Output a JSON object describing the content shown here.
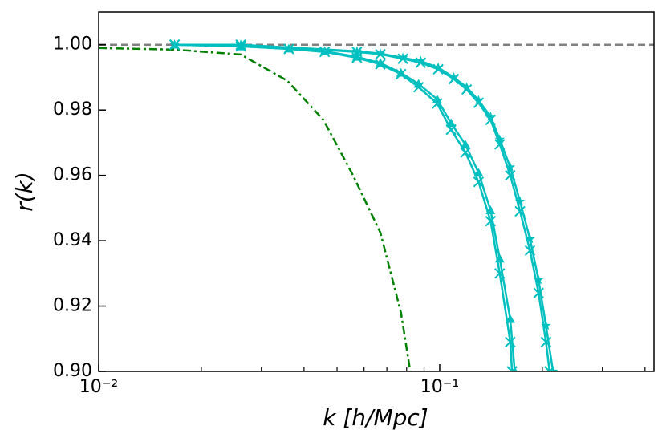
{
  "chart_data": {
    "type": "line",
    "xlabel": "k [h/Mpc]",
    "ylabel": "r(k)",
    "xscale": "log",
    "xlim": [
      0.01,
      0.425
    ],
    "ylim": [
      0.9,
      1.01
    ],
    "xticks": [
      {
        "value": 0.01,
        "label": "10⁻²"
      },
      {
        "value": 0.1,
        "label": "10⁻¹"
      }
    ],
    "xminor_ticks": [
      0.02,
      0.03,
      0.04,
      0.05,
      0.06,
      0.07,
      0.08,
      0.09,
      0.2,
      0.3,
      0.4
    ],
    "yticks": [
      {
        "value": 0.9,
        "label": "0.90"
      },
      {
        "value": 0.92,
        "label": "0.92"
      },
      {
        "value": 0.94,
        "label": "0.94"
      },
      {
        "value": 0.96,
        "label": "0.96"
      },
      {
        "value": 0.98,
        "label": "0.98"
      },
      {
        "value": 1.0,
        "label": "1.00"
      }
    ],
    "hline": {
      "value": 1.0,
      "color": "#808080"
    },
    "series": [
      {
        "color": "#008000",
        "linestyle": "dashdot",
        "marker": "none",
        "x": [
          0.01,
          0.0167,
          0.0261,
          0.0357,
          0.0456,
          0.0557,
          0.067,
          0.077,
          0.082
        ],
        "values": [
          0.999,
          0.9985,
          0.997,
          0.989,
          0.977,
          0.96,
          0.9425,
          0.918,
          0.9
        ]
      },
      {
        "color": "#00bfbf",
        "linestyle": "solid",
        "marker": "star",
        "x": [
          0.0167,
          0.0261,
          0.0572,
          0.067,
          0.078,
          0.088,
          0.099,
          0.11,
          0.12,
          0.13,
          0.141,
          0.15,
          0.161,
          0.172,
          0.184,
          0.195,
          0.205,
          0.215
        ],
        "values": [
          1.0,
          1.0,
          0.998,
          0.9973,
          0.996,
          0.995,
          0.993,
          0.99,
          0.987,
          0.983,
          0.978,
          0.971,
          0.9625,
          0.952,
          0.9405,
          0.928,
          0.914,
          0.9
        ]
      },
      {
        "color": "#00bfbf",
        "linestyle": "solid",
        "marker": "x",
        "x": [
          0.0167,
          0.0261,
          0.0572,
          0.067,
          0.078,
          0.088,
          0.099,
          0.11,
          0.12,
          0.13,
          0.141,
          0.15,
          0.161,
          0.172,
          0.184,
          0.195,
          0.205,
          0.21
        ],
        "values": [
          1.0,
          1.0,
          0.9978,
          0.9971,
          0.9957,
          0.9945,
          0.9925,
          0.9895,
          0.9863,
          0.9822,
          0.977,
          0.9695,
          0.96,
          0.949,
          0.937,
          0.924,
          0.909,
          0.9
        ]
      },
      {
        "color": "#00bfbf",
        "linestyle": "solid",
        "marker": "triangle",
        "x": [
          0.0167,
          0.0261,
          0.0361,
          0.046,
          0.0572,
          0.067,
          0.077,
          0.0867,
          0.0983,
          0.108,
          0.119,
          0.13,
          0.141,
          0.15,
          0.161,
          0.166
        ],
        "values": [
          1.0,
          0.9995,
          0.9988,
          0.998,
          0.9963,
          0.9944,
          0.9914,
          0.988,
          0.9833,
          0.976,
          0.9694,
          0.9608,
          0.9493,
          0.9345,
          0.916,
          0.9
        ]
      },
      {
        "color": "#00bfbf",
        "linestyle": "solid",
        "marker": "x",
        "x": [
          0.0167,
          0.0261,
          0.0361,
          0.046,
          0.0572,
          0.067,
          0.077,
          0.0867,
          0.0983,
          0.108,
          0.119,
          0.13,
          0.141,
          0.15,
          0.161,
          0.163
        ],
        "values": [
          1.0,
          0.9995,
          0.9987,
          0.9978,
          0.996,
          0.994,
          0.991,
          0.987,
          0.982,
          0.974,
          0.967,
          0.958,
          0.946,
          0.93,
          0.909,
          0.9
        ]
      }
    ]
  }
}
